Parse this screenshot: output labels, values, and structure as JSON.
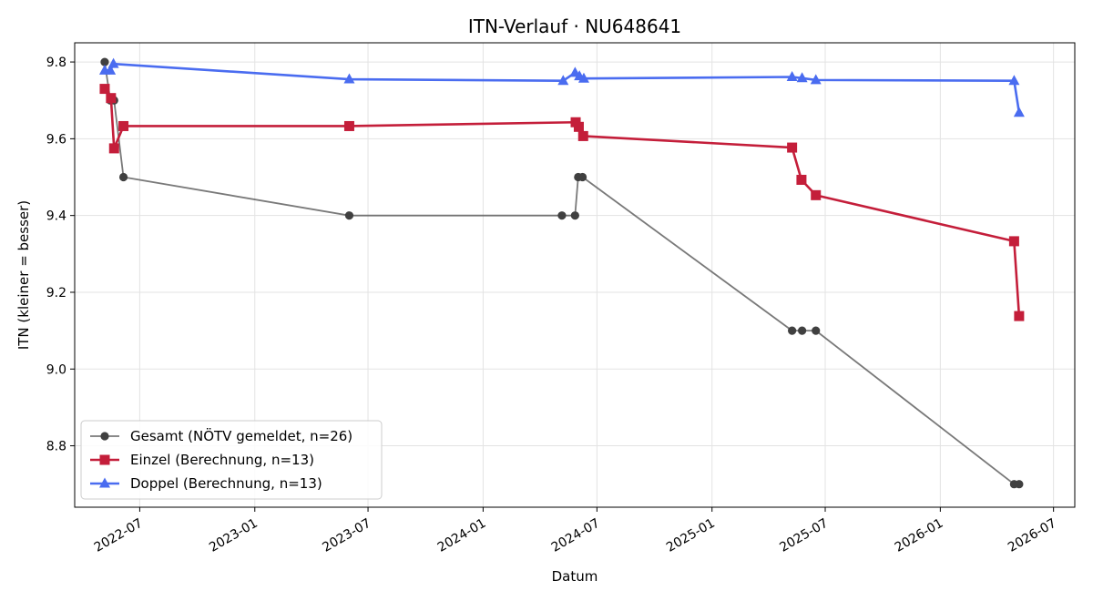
{
  "chart_data": {
    "type": "line",
    "title": "ITN-Verlauf · NU648641",
    "xlabel": "Datum",
    "ylabel": "ITN  (kleiner = besser)",
    "ylim": [
      8.64,
      9.85
    ],
    "xlim": [
      "2022-03-19",
      "2026-08-04"
    ],
    "grid": true,
    "legend_position": "lower-left",
    "x_ticks": [
      "2022-07",
      "2023-01",
      "2023-07",
      "2024-01",
      "2024-07",
      "2025-01",
      "2025-07",
      "2026-01",
      "2026-07"
    ],
    "y_ticks": [
      "8.8",
      "9.0",
      "9.2",
      "9.4",
      "9.6",
      "9.8"
    ],
    "series": [
      {
        "name": "Gesamt (NÖTV gemeldet, n=26)",
        "color": "#404040",
        "marker": "circle",
        "x": [
          "2022-05-06",
          "2022-05-15",
          "2022-05-21",
          "2022-06-05",
          "2023-06-01",
          "2024-05-06",
          "2024-05-27",
          "2024-06-01",
          "2024-06-08",
          "2025-05-09",
          "2025-05-25",
          "2025-06-16",
          "2026-04-29",
          "2026-05-07"
        ],
        "values": [
          9.8,
          9.7,
          9.7,
          9.5,
          9.4,
          9.4,
          9.4,
          9.5,
          9.5,
          9.1,
          9.1,
          9.1,
          8.7,
          8.7
        ]
      },
      {
        "name": "Einzel (Berechnung, n=13)",
        "color": "#c41e3a",
        "marker": "square",
        "x": [
          "2022-05-06",
          "2022-05-16",
          "2022-05-21",
          "2022-06-05",
          "2023-06-01",
          "2024-05-28",
          "2024-06-02",
          "2024-06-09",
          "2025-05-09",
          "2025-05-24",
          "2025-06-16",
          "2026-04-29",
          "2026-05-07"
        ],
        "values": [
          9.73,
          9.706,
          9.575,
          9.633,
          9.633,
          9.643,
          9.631,
          9.607,
          9.577,
          9.493,
          9.453,
          9.333,
          9.138
        ]
      },
      {
        "name": "Doppel (Berechnung, n=13)",
        "color": "#4a6cf0",
        "marker": "triangle",
        "x": [
          "2022-05-06",
          "2022-05-15",
          "2022-05-20",
          "2023-06-01",
          "2024-05-08",
          "2024-05-27",
          "2024-06-03",
          "2024-06-10",
          "2025-05-09",
          "2025-05-25",
          "2025-06-16",
          "2026-04-29",
          "2026-05-07"
        ],
        "values": [
          9.778,
          9.778,
          9.795,
          9.755,
          9.751,
          9.772,
          9.763,
          9.757,
          9.761,
          9.758,
          9.753,
          9.751,
          9.668
        ]
      }
    ]
  }
}
